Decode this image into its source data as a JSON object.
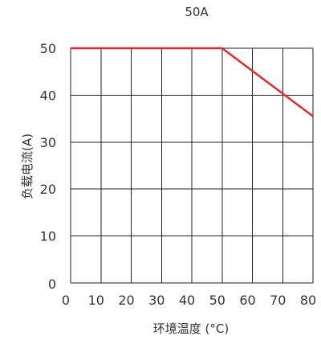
{
  "chart_data": {
    "type": "line",
    "title": "50A",
    "xlabel": "环境温度 (°C)",
    "ylabel": "负载电流(A)",
    "xlim": [
      0,
      80
    ],
    "ylim": [
      0,
      50
    ],
    "x_ticks": [
      0,
      10,
      20,
      30,
      40,
      50,
      60,
      70,
      80
    ],
    "y_ticks": [
      0,
      10,
      20,
      30,
      40,
      50
    ],
    "x_tick_labels": [
      "0",
      "10",
      "20",
      "30",
      "40",
      "50",
      "60",
      "70",
      "80"
    ],
    "y_tick_labels": [
      "0",
      "10",
      "20",
      "30",
      "40",
      "50"
    ],
    "grid": true,
    "series": [
      {
        "x": [
          0,
          50,
          80
        ],
        "y": [
          50,
          50,
          35.5
        ],
        "color": "#e8262d"
      }
    ]
  },
  "colors": {
    "grid": "#222222",
    "text": "#333333",
    "line": "#e8262d"
  }
}
